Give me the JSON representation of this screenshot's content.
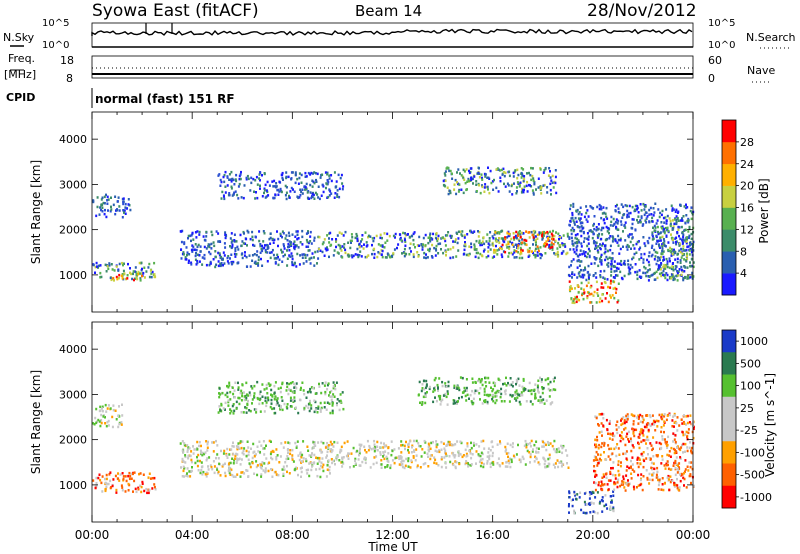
{
  "header": {
    "title": "Syowa East (fitACF)",
    "beam": "Beam 14",
    "date": "28/Nov/2012"
  },
  "status": {
    "nsky_label": "N.Sky",
    "nsearch_label": "N.Search",
    "noise_ticks": [
      "10^5",
      "10^0"
    ],
    "freq_label": "Freq.",
    "freq_unit": "[MHz]",
    "freq_ticks": [
      "18",
      "8"
    ],
    "nave_label": "Nave",
    "nave_ticks": [
      "60",
      "0"
    ],
    "cpid_label": "CPID",
    "mode": "normal (fast) 151 RF"
  },
  "chart_data": [
    {
      "type": "heatmap",
      "panel": "power",
      "xlabel": "",
      "ylabel": "Slant Range [km]",
      "xlim": [
        0,
        24
      ],
      "ylim": [
        180,
        4600
      ],
      "yticks": [
        "1000",
        "2000",
        "3000",
        "4000"
      ],
      "colorbar_label": "Power [dB]",
      "colorbar_ticks": [
        "4",
        "8",
        "12",
        "16",
        "20",
        "24",
        "28"
      ],
      "colorbar_colors": [
        "#1a1aff",
        "#2a5fb0",
        "#3c8c6a",
        "#58b050",
        "#c8d040",
        "#ffb000",
        "#ff7000",
        "#ff0000"
      ],
      "echo_bands": [
        {
          "t0": 0.0,
          "t1": 1.5,
          "r0": 2300,
          "r1": 2800,
          "level": "low"
        },
        {
          "t0": 0.0,
          "t1": 2.5,
          "r0": 900,
          "r1": 1300,
          "level": "mid"
        },
        {
          "t0": 0.8,
          "t1": 2.0,
          "r0": 900,
          "r1": 1100,
          "level": "high"
        },
        {
          "t0": 3.5,
          "t1": 9.0,
          "r0": 1200,
          "r1": 2000,
          "level": "low"
        },
        {
          "t0": 5.0,
          "t1": 10.0,
          "r0": 2700,
          "r1": 3300,
          "level": "low"
        },
        {
          "t0": 9.0,
          "t1": 19.0,
          "r0": 1400,
          "r1": 2000,
          "level": "mid"
        },
        {
          "t0": 14.0,
          "t1": 18.5,
          "r0": 2800,
          "r1": 3400,
          "level": "mid"
        },
        {
          "t0": 16.0,
          "t1": 18.5,
          "r0": 1500,
          "r1": 2000,
          "level": "high"
        },
        {
          "t0": 19.0,
          "t1": 21.0,
          "r0": 400,
          "r1": 900,
          "level": "high"
        },
        {
          "t0": 19.0,
          "t1": 24.0,
          "r0": 900,
          "r1": 2600,
          "level": "low"
        },
        {
          "t0": 22.5,
          "t1": 24.0,
          "r0": 900,
          "r1": 2300,
          "level": "mid"
        }
      ]
    },
    {
      "type": "heatmap",
      "panel": "velocity",
      "xlabel": "Time UT",
      "ylabel": "Slant Range [km]",
      "xlim": [
        0,
        24
      ],
      "ylim": [
        180,
        4600
      ],
      "xticks": [
        "00:00",
        "04:00",
        "08:00",
        "12:00",
        "16:00",
        "20:00",
        "00:00"
      ],
      "yticks": [
        "1000",
        "2000",
        "3000",
        "4000"
      ],
      "colorbar_label": "Velocity [m s^-1]",
      "colorbar_ticks": [
        "1000",
        "500",
        "100",
        "25",
        "-25",
        "-100",
        "-500",
        "-1000"
      ],
      "colorbar_colors": [
        "#1a3ac8",
        "#2a7a50",
        "#56c030",
        "#c8c8c8",
        "#c8c8c8",
        "#ffa000",
        "#ff6000",
        "#ff0000"
      ],
      "echo_bands": [
        {
          "t0": 0.0,
          "t1": 1.2,
          "r0": 2300,
          "r1": 2800,
          "level": "gray"
        },
        {
          "t0": 0.0,
          "t1": 2.5,
          "r0": 850,
          "r1": 1300,
          "level": "orange"
        },
        {
          "t0": 3.5,
          "t1": 9.5,
          "r0": 1200,
          "r1": 2000,
          "level": "gray"
        },
        {
          "t0": 5.0,
          "t1": 10.0,
          "r0": 2600,
          "r1": 3300,
          "level": "green"
        },
        {
          "t0": 9.5,
          "t1": 19.0,
          "r0": 1400,
          "r1": 2000,
          "level": "gray"
        },
        {
          "t0": 13.0,
          "t1": 18.5,
          "r0": 2800,
          "r1": 3400,
          "level": "green"
        },
        {
          "t0": 19.0,
          "t1": 20.8,
          "r0": 400,
          "r1": 900,
          "level": "blue"
        },
        {
          "t0": 20.0,
          "t1": 24.0,
          "r0": 900,
          "r1": 2600,
          "level": "orange"
        }
      ]
    }
  ]
}
